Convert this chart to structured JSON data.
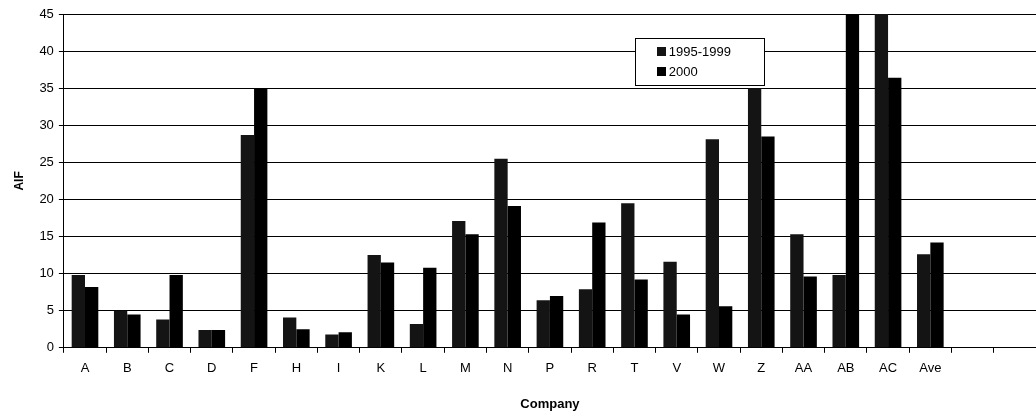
{
  "chart_data": {
    "type": "bar",
    "xlabel": "Company",
    "ylabel": "AIF",
    "categories": [
      "A",
      "B",
      "C",
      "D",
      "F",
      "H",
      "I",
      "K",
      "L",
      "M",
      "N",
      "P",
      "R",
      "T",
      "V",
      "W",
      "Z",
      "AA",
      "AB",
      "AC",
      "Ave",
      null,
      null
    ],
    "series": [
      {
        "name": "1995-1999",
        "color": "#141414",
        "values": [
          9.8,
          5.0,
          3.8,
          2.4,
          28.7,
          4.1,
          1.8,
          12.5,
          3.2,
          17.1,
          25.5,
          6.4,
          7.9,
          19.5,
          11.6,
          28.1,
          35.0,
          15.3,
          9.8,
          45,
          12.6,
          null,
          null
        ]
      },
      {
        "name": "2000",
        "color": "#000000",
        "values": [
          8.2,
          4.5,
          9.8,
          2.4,
          35.0,
          2.5,
          2.1,
          11.5,
          10.8,
          15.3,
          19.1,
          7.0,
          16.9,
          9.2,
          4.5,
          5.6,
          28.5,
          9.6,
          45,
          36.4,
          14.2,
          null,
          null
        ]
      }
    ],
    "ylim": [
      0,
      45
    ],
    "yticks": [
      0,
      5,
      10,
      15,
      20,
      25,
      30,
      35,
      40,
      45
    ],
    "grid": "y",
    "legend": "top right"
  }
}
